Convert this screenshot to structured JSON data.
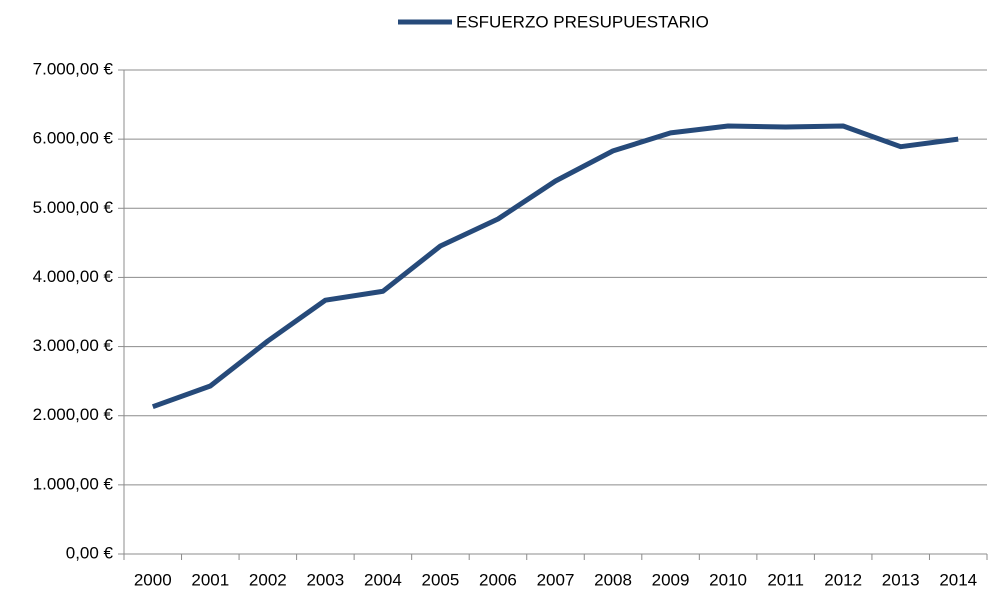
{
  "chart_data": {
    "type": "line",
    "categories": [
      "2000",
      "2001",
      "2002",
      "2003",
      "2004",
      "2005",
      "2006",
      "2007",
      "2008",
      "2009",
      "2010",
      "2011",
      "2012",
      "2013",
      "2014"
    ],
    "series": [
      {
        "name": "ESFUERZO PRESUPUESTARIO",
        "color": "#264a7a",
        "values": [
          2130,
          2430,
          3080,
          3670,
          3800,
          4455,
          4845,
          5395,
          5830,
          6090,
          6190,
          6175,
          6190,
          5890,
          6000
        ]
      }
    ],
    "ylim": [
      0,
      7000
    ],
    "yticks": [
      {
        "value": 0,
        "label": "0,00 €"
      },
      {
        "value": 1000,
        "label": "1.000,00 €"
      },
      {
        "value": 2000,
        "label": "2.000,00 €"
      },
      {
        "value": 3000,
        "label": "3.000,00 €"
      },
      {
        "value": 4000,
        "label": "4.000,00 €"
      },
      {
        "value": 5000,
        "label": "5.000,00 €"
      },
      {
        "value": 6000,
        "label": "6.000,00 €"
      },
      {
        "value": 7000,
        "label": "7.000,00 €"
      }
    ],
    "grid": true,
    "legend": "top"
  }
}
